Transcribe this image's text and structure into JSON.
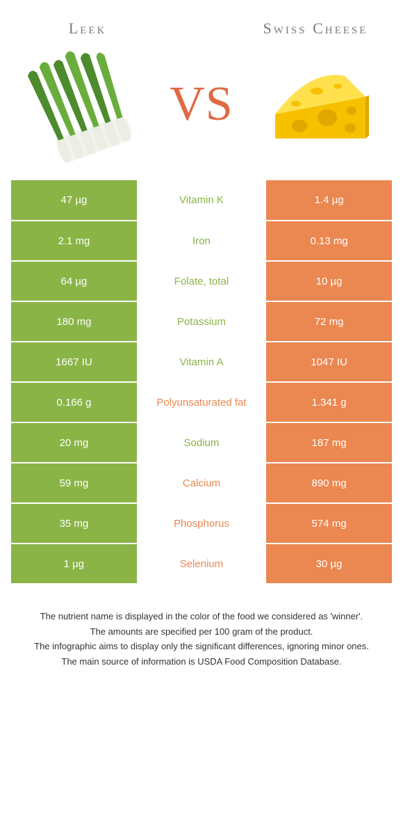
{
  "colors": {
    "leek": "#8ab446",
    "cheese": "#eb8750",
    "vs": "#e06a43",
    "title": "#7a7a7a"
  },
  "foods": {
    "left": {
      "name": "Leek"
    },
    "right": {
      "name": "Swiss Cheese"
    }
  },
  "vs_label": "VS",
  "rows": [
    {
      "nutrient": "Vitamin K",
      "left": "47 µg",
      "right": "1.4 µg",
      "winner": "left"
    },
    {
      "nutrient": "Iron",
      "left": "2.1 mg",
      "right": "0.13 mg",
      "winner": "left"
    },
    {
      "nutrient": "Folate, total",
      "left": "64 µg",
      "right": "10 µg",
      "winner": "left"
    },
    {
      "nutrient": "Potassium",
      "left": "180 mg",
      "right": "72 mg",
      "winner": "left"
    },
    {
      "nutrient": "Vitamin A",
      "left": "1667 IU",
      "right": "1047 IU",
      "winner": "left"
    },
    {
      "nutrient": "Polyunsaturated fat",
      "left": "0.166 g",
      "right": "1.341 g",
      "winner": "right"
    },
    {
      "nutrient": "Sodium",
      "left": "20 mg",
      "right": "187 mg",
      "winner": "left"
    },
    {
      "nutrient": "Calcium",
      "left": "59 mg",
      "right": "890 mg",
      "winner": "right"
    },
    {
      "nutrient": "Phosphorus",
      "left": "35 mg",
      "right": "574 mg",
      "winner": "right"
    },
    {
      "nutrient": "Selenium",
      "left": "1 µg",
      "right": "30 µg",
      "winner": "right"
    }
  ],
  "footnotes": [
    "The nutrient name is displayed in the color of the food we considered as 'winner'.",
    "The amounts are specified per 100 gram of the product.",
    "The infographic aims to display only the significant differences, ignoring minor ones.",
    "The main source of information is USDA Food Composition Database."
  ]
}
